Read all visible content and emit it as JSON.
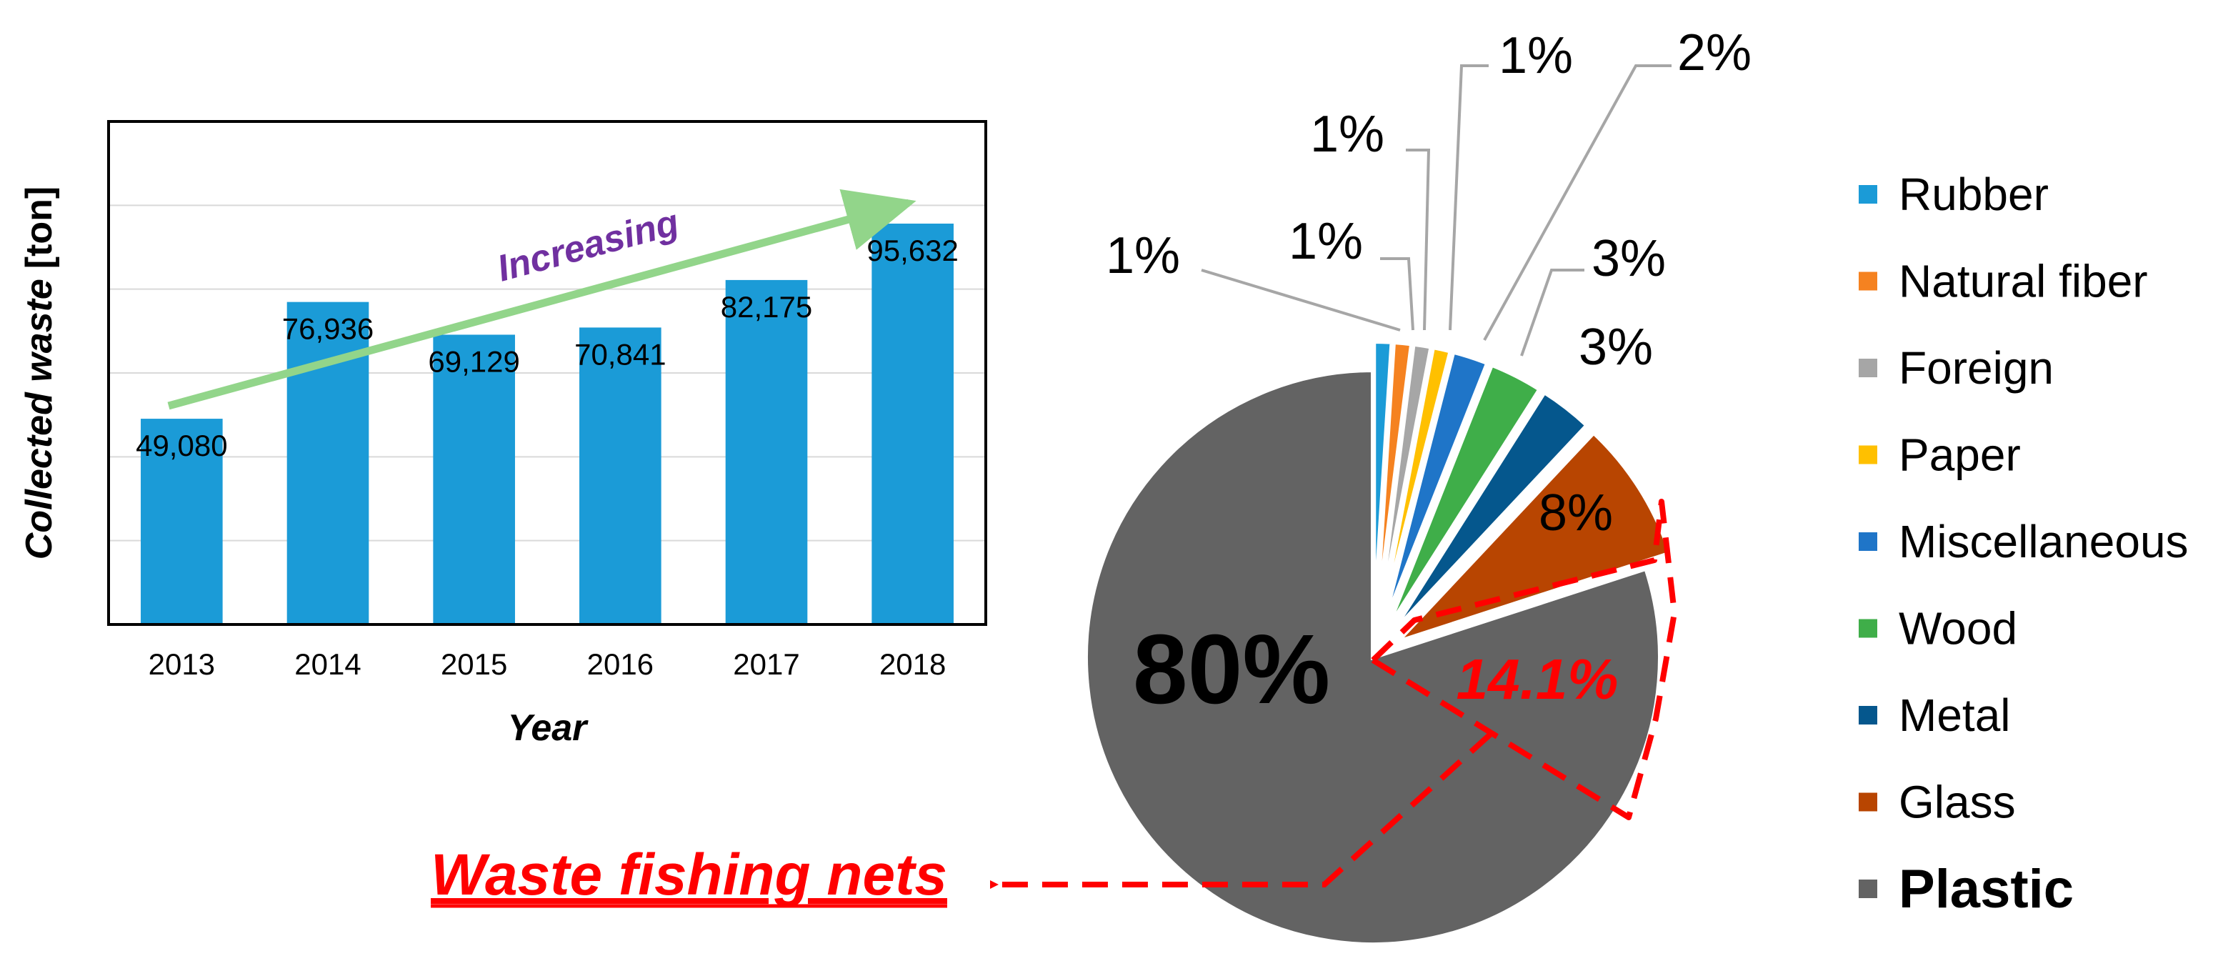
{
  "chart_data": [
    {
      "type": "bar",
      "title": "",
      "xlabel": "Year",
      "ylabel_italic": "Collected waste",
      "ylabel_unit": "[ton]",
      "categories": [
        "2013",
        "2014",
        "2015",
        "2016",
        "2017",
        "2018"
      ],
      "values": [
        49080,
        76936,
        69129,
        70841,
        82175,
        95632
      ],
      "value_labels": [
        "49,080",
        "76,936",
        "69,129",
        "70,841",
        "82,175",
        "95,632"
      ],
      "ylim": [
        0,
        120000
      ],
      "grid": true,
      "bar_color": "#1b9bd7",
      "annotation": {
        "text": "Increasing",
        "arrow_color": "#92d58a",
        "text_color": "#7030a0"
      }
    },
    {
      "type": "pie",
      "slices": [
        {
          "name": "Rubber",
          "value": 1,
          "label": "1%",
          "color": "#1b9bd7"
        },
        {
          "name": "Natural fiber",
          "value": 1,
          "label": "1%",
          "color": "#f58220"
        },
        {
          "name": "Foreign",
          "value": 1,
          "label": "1%",
          "color": "#a6a6a6"
        },
        {
          "name": "Paper",
          "value": 1,
          "label": "1%",
          "color": "#ffc000"
        },
        {
          "name": "Miscellaneous",
          "value": 2,
          "label": "2%",
          "color": "#1f75c8"
        },
        {
          "name": "Wood",
          "value": 3,
          "label": "3%",
          "color": "#3fae49"
        },
        {
          "name": "Metal",
          "value": 3,
          "label": "3%",
          "color": "#05578d"
        },
        {
          "name": "Glass",
          "value": 8,
          "label": "8%",
          "color": "#b84501"
        },
        {
          "name": "Plastic",
          "value": 80,
          "label": "80%",
          "color": "#636363"
        }
      ],
      "legend_position": "right",
      "highlight": {
        "label": "14.1%",
        "value": 14.1,
        "color": "#ff0000",
        "callout": "Waste fishing nets"
      }
    }
  ]
}
